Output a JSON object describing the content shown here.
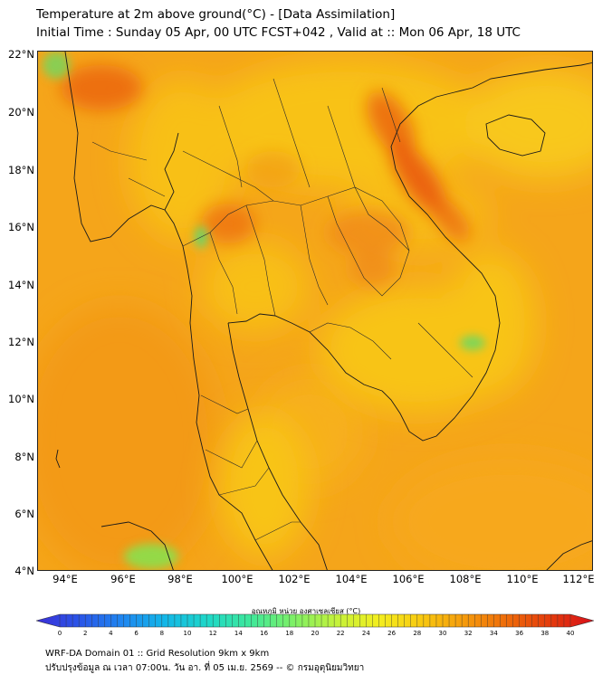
{
  "title": {
    "line1": "Temperature at 2m above ground(°C) - [Data Assimilation]",
    "line2": "Initial Time : Sunday 05 Apr, 00 UTC FCST+042 , Valid at :: Mon 06 Apr, 18 UTC"
  },
  "axes": {
    "y_labels": [
      "22°N",
      "20°N",
      "18°N",
      "16°N",
      "14°N",
      "12°N",
      "10°N",
      "8°N",
      "6°N",
      "4°N"
    ],
    "x_labels": [
      "94°E",
      "96°E",
      "98°E",
      "100°E",
      "102°E",
      "104°E",
      "106°E",
      "108°E",
      "110°E",
      "112°E"
    ]
  },
  "colorbar": {
    "title": "อุณหภูมิ หน่วย องศาเซลเซียส (°C)",
    "ticks": [
      "0",
      "2",
      "4",
      "6",
      "8",
      "10",
      "12",
      "14",
      "16",
      "18",
      "20",
      "22",
      "24",
      "26",
      "28",
      "30",
      "32",
      "34",
      "36",
      "38",
      "40"
    ],
    "colors": [
      "#3b2fd6",
      "#2a55e8",
      "#1f86f0",
      "#13b7e8",
      "#1fd8c8",
      "#3fe89a",
      "#7ef066",
      "#c4f23a",
      "#f4ee1e",
      "#f8c810",
      "#f59a0c",
      "#ee6a0a",
      "#e43a0c",
      "#d8101a"
    ]
  },
  "footer": {
    "line1": "WRF-DA Domain 01 :: Grid Resolution 9km x 9km",
    "line2": "ปรับปรุงข้อมูล ณ เวลา 07:00น. วัน อา. ที่ 05 เม.ย. 2569 -- © กรมอุตุนิยมวิทยา"
  }
}
